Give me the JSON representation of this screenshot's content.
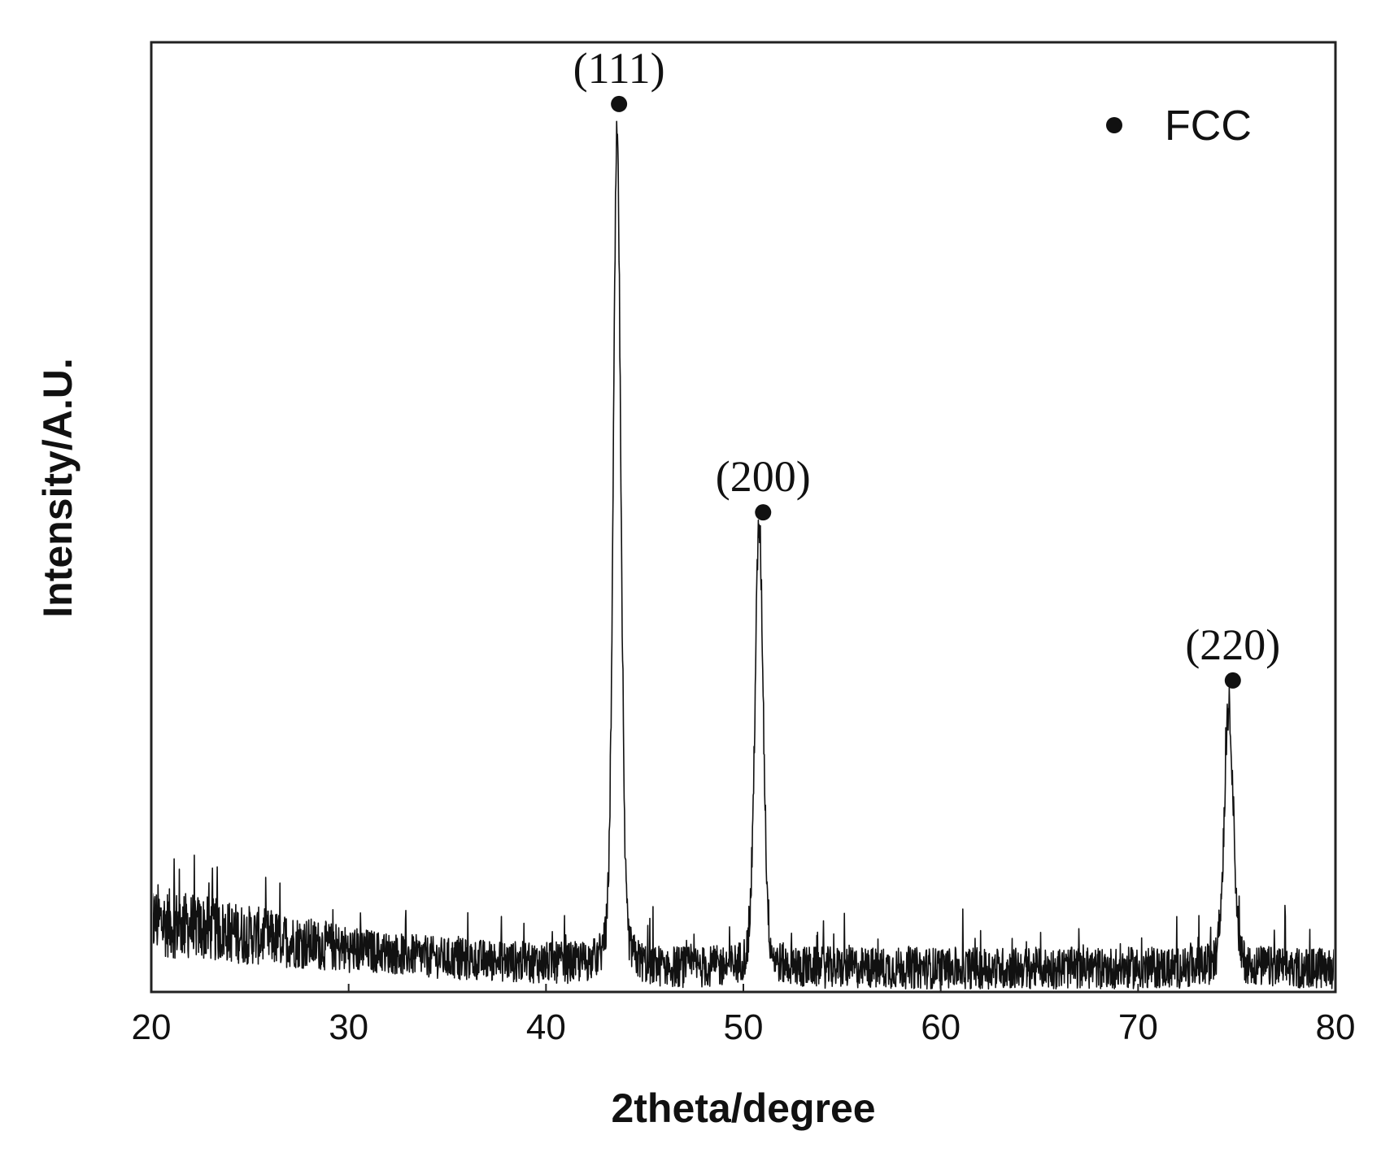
{
  "chart_data": {
    "type": "line",
    "xlabel": "2theta/degree",
    "ylabel": "Intensity/A.U.",
    "xlim": [
      20,
      80
    ],
    "ylim": [
      0,
      1
    ],
    "xticks": [
      20,
      30,
      40,
      50,
      60,
      70,
      80
    ],
    "xtick_labels": [
      "20",
      "30",
      "40",
      "50",
      "60",
      "70",
      "80"
    ],
    "grid": false,
    "legend": {
      "position": "top-right",
      "entries": [
        {
          "marker": "filled-circle",
          "label": "FCC"
        }
      ]
    },
    "series": [
      {
        "line_color": "#111111",
        "baseline": [
          {
            "x": 20,
            "y": 0.075
          },
          {
            "x": 25,
            "y": 0.06
          },
          {
            "x": 30,
            "y": 0.045
          },
          {
            "x": 35,
            "y": 0.035
          },
          {
            "x": 40,
            "y": 0.03
          },
          {
            "x": 45,
            "y": 0.025
          },
          {
            "x": 60,
            "y": 0.025
          },
          {
            "x": 80,
            "y": 0.025
          }
        ],
        "noise_amplitude": 0.022,
        "peaks": [
          {
            "x": 43.6,
            "y": 0.9,
            "fwhm": 0.45
          },
          {
            "x": 50.8,
            "y": 0.49,
            "fwhm": 0.5
          },
          {
            "x": 74.6,
            "y": 0.3,
            "fwhm": 0.55
          }
        ]
      }
    ],
    "annotations": [
      {
        "text": "(111)",
        "x": 43.7,
        "marker_y": 0.935
      },
      {
        "text": "(200)",
        "x": 51.0,
        "marker_y": 0.505
      },
      {
        "text": "(220)",
        "x": 74.8,
        "marker_y": 0.328
      }
    ]
  }
}
